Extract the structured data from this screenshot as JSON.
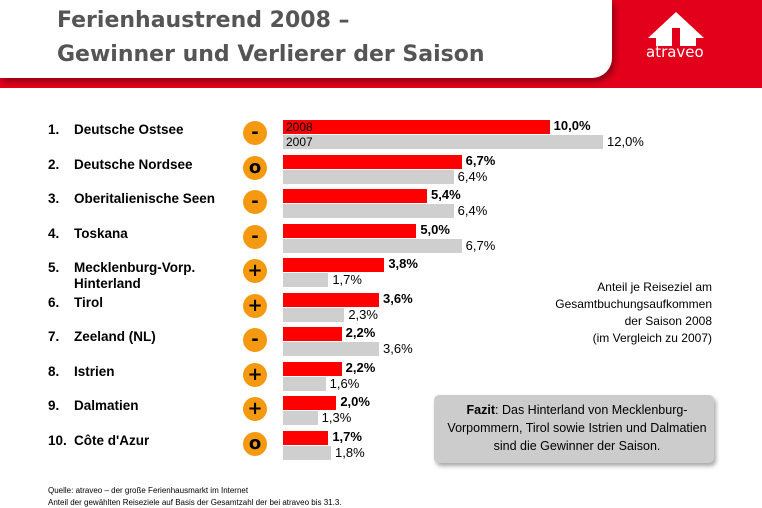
{
  "header": {
    "title_line1": "Ferienhaustrend 2008 –",
    "title_line2": "Gewinner und Verlierer der Saison",
    "logo_text": "atraveo",
    "band_color": "#e3001b"
  },
  "chart_data": {
    "type": "bar",
    "orientation": "horizontal",
    "series": [
      {
        "name": "2008",
        "values": [
          10.0,
          6.7,
          5.4,
          5.0,
          3.8,
          3.6,
          2.2,
          2.2,
          2.0,
          1.7
        ],
        "color": "#ff0000"
      },
      {
        "name": "2007",
        "values": [
          12.0,
          6.4,
          6.4,
          6.7,
          1.7,
          2.3,
          3.6,
          1.6,
          1.3,
          1.8
        ],
        "color": "#cfcfcf"
      }
    ],
    "rows": [
      {
        "rank": "1.",
        "name": "Deutsche Ostsee",
        "trend": "-",
        "cur_label": "10,0%",
        "prev_label": "12,0%"
      },
      {
        "rank": "2.",
        "name": "Deutsche Nordsee",
        "trend": "o",
        "cur_label": "6,7%",
        "prev_label": "6,4%"
      },
      {
        "rank": "3.",
        "name": "Oberitalienische Seen",
        "trend": "-",
        "cur_label": "5,4%",
        "prev_label": "6,4%"
      },
      {
        "rank": "4.",
        "name": "Toskana",
        "trend": "-",
        "cur_label": "5,0%",
        "prev_label": "6,7%"
      },
      {
        "rank": "5.",
        "name": "Mecklenburg-Vorp.",
        "name2": "Hinterland",
        "trend": "+",
        "cur_label": "3,8%",
        "prev_label": "1,7%"
      },
      {
        "rank": "6.",
        "name": "Tirol",
        "trend": "+",
        "cur_label": "3,6%",
        "prev_label": "2,3%"
      },
      {
        "rank": "7.",
        "name": "Zeeland (NL)",
        "trend": "-",
        "cur_label": "2,2%",
        "prev_label": "3,6%"
      },
      {
        "rank": "8.",
        "name": "Istrien",
        "trend": "+",
        "cur_label": "2,2%",
        "prev_label": "1,6%"
      },
      {
        "rank": "9.",
        "name": "Dalmatien",
        "trend": "+",
        "cur_label": "2,0%",
        "prev_label": "1,3%"
      },
      {
        "rank": "10.",
        "name": "Côte d'Azur",
        "trend": "o",
        "cur_label": "1,7%",
        "prev_label": "1,8%"
      }
    ],
    "in_bar_labels": {
      "cur": "2008",
      "prev": "2007"
    },
    "xlim": [
      0,
      12.0
    ],
    "trend_color": "#f59a10"
  },
  "note": {
    "lines": [
      "Anteil je Reiseziel am",
      "Gesamtbuchungsaufkommen",
      "der Saison 2008",
      "(im Vergleich zu 2007)"
    ]
  },
  "fazit": {
    "label": "Fazit",
    "text": ": Das Hinterland von Mecklenburg-Vorpommern, Tirol sowie Istrien und Dalmatien sind die Gewinner der Saison."
  },
  "source": {
    "line1": "Quelle: atraveo – der große Ferienhausmarkt im Internet",
    "line2": "Anteil der gewählten Reiseziele auf Basis der Gesamtzahl der bei atraveo bis 31.3."
  }
}
